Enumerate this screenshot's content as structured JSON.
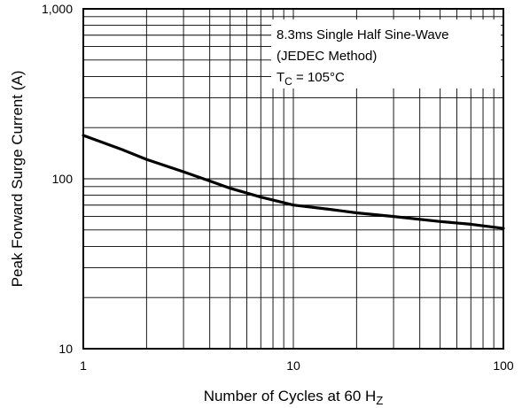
{
  "chart_data": {
    "type": "line",
    "x_scale": "log",
    "y_scale": "log",
    "xlim": [
      1,
      100
    ],
    "ylim": [
      10,
      1000
    ],
    "x_ticks": [
      1,
      10,
      100
    ],
    "x_tick_labels": [
      "1",
      "10",
      "100"
    ],
    "y_ticks": [
      10,
      100,
      1000
    ],
    "y_tick_labels": [
      "10",
      "100",
      "1,000"
    ],
    "xlabel_main": "Number of Cycles at 60 H",
    "xlabel_sub": "Z",
    "ylabel": "Peak Forward Surge Current (A)",
    "grid": true,
    "annotation": {
      "line1": "8.3ms Single Half Sine-Wave",
      "line2": "(JEDEC Method)",
      "line3_main": "T",
      "line3_sub": "C",
      "line3_rest": " = 105°C"
    },
    "series": [
      {
        "x": [
          1,
          1.5,
          2,
          3,
          4,
          5,
          7,
          10,
          15,
          20,
          30,
          50,
          70,
          100
        ],
        "y": [
          180,
          150,
          130,
          110,
          97,
          88,
          78,
          70,
          66,
          63,
          60,
          56,
          54,
          51
        ]
      }
    ]
  }
}
